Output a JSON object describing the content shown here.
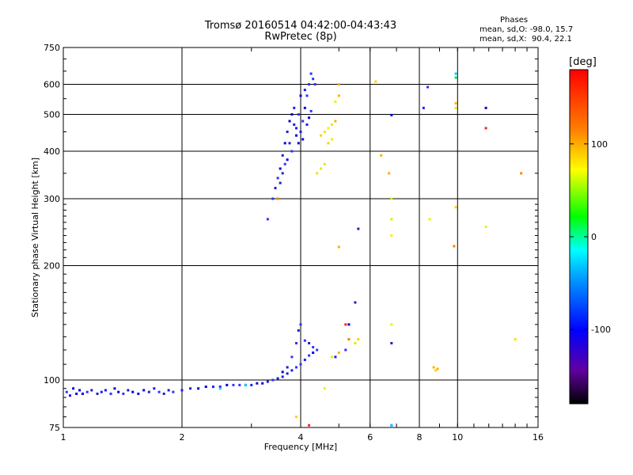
{
  "header": {
    "title_line1": "Tromsø 20160514 04:42:00-04:43:43",
    "title_line2": "RwPretec (8p)"
  },
  "phases_box": {
    "heading": "Phases",
    "line_o": "mean, sd,O: -98.0, 15.7",
    "line_x": "mean, sd,X:  90.4, 22.1"
  },
  "colors": {
    "axis": "#000000",
    "point_blue": "#2020ff"
  },
  "chart_data": {
    "type": "scatter",
    "title": "Tromsø 20160514 04:42:00-04:43:43",
    "subtitle": "RwPretec (8p)",
    "xlabel": "Frequency [MHz]",
    "ylabel": "Stationary phase Virtual Height [km]",
    "x_scale": "log",
    "y_scale": "log",
    "xlim": [
      1,
      16
    ],
    "ylim": [
      75,
      750
    ],
    "x_ticks": [
      1,
      2,
      4,
      6,
      8,
      10,
      16
    ],
    "x_tick_labels": [
      "1",
      "2",
      "4",
      "6",
      "8",
      "10",
      "16"
    ],
    "y_ticks": [
      75,
      100,
      200,
      300,
      400,
      500,
      600,
      750
    ],
    "y_tick_labels": [
      "75",
      "100",
      "200",
      "300",
      "400",
      "500",
      "600",
      "750"
    ],
    "grid": true,
    "colorbar": {
      "label": "[deg]",
      "range": [
        -180,
        180
      ],
      "ticks": [
        100,
        0,
        -100
      ],
      "tick_labels": [
        "100",
        "0",
        "-100"
      ]
    },
    "series": [
      {
        "mode": "O",
        "note": "blue points, phase about -100 deg",
        "points": [
          [
            1.02,
            93
          ],
          [
            1.04,
            91
          ],
          [
            1.06,
            95
          ],
          [
            1.08,
            92
          ],
          [
            1.1,
            94
          ],
          [
            1.12,
            92
          ],
          [
            1.15,
            93
          ],
          [
            1.18,
            94
          ],
          [
            1.22,
            92
          ],
          [
            1.25,
            93
          ],
          [
            1.28,
            94
          ],
          [
            1.32,
            92
          ],
          [
            1.35,
            95
          ],
          [
            1.38,
            93
          ],
          [
            1.42,
            92
          ],
          [
            1.46,
            94
          ],
          [
            1.5,
            93
          ],
          [
            1.55,
            92
          ],
          [
            1.6,
            94
          ],
          [
            1.65,
            93
          ],
          [
            1.7,
            95
          ],
          [
            1.75,
            93
          ],
          [
            1.8,
            92
          ],
          [
            1.85,
            94
          ],
          [
            1.9,
            93
          ],
          [
            2.0,
            94
          ],
          [
            2.1,
            95
          ],
          [
            2.2,
            95
          ],
          [
            2.3,
            96
          ],
          [
            2.4,
            96
          ],
          [
            2.5,
            96
          ],
          [
            2.6,
            97
          ],
          [
            2.7,
            97
          ],
          [
            2.8,
            97
          ],
          [
            2.9,
            97
          ],
          [
            3.0,
            97
          ],
          [
            3.1,
            98
          ],
          [
            3.2,
            98
          ],
          [
            3.3,
            99
          ],
          [
            3.4,
            100
          ],
          [
            3.5,
            101
          ],
          [
            3.6,
            102
          ],
          [
            3.7,
            104
          ],
          [
            3.8,
            106
          ],
          [
            3.9,
            108
          ],
          [
            4.0,
            110
          ],
          [
            4.1,
            113
          ],
          [
            4.2,
            116
          ],
          [
            4.3,
            118
          ],
          [
            4.4,
            120
          ],
          [
            3.6,
            105
          ],
          [
            3.7,
            108
          ],
          [
            3.8,
            115
          ],
          [
            3.9,
            125
          ],
          [
            3.95,
            135
          ],
          [
            4.0,
            140
          ],
          [
            4.1,
            127
          ],
          [
            4.2,
            125
          ],
          [
            4.3,
            122
          ],
          [
            3.4,
            300
          ],
          [
            3.45,
            320
          ],
          [
            3.5,
            340
          ],
          [
            3.55,
            360
          ],
          [
            3.6,
            390
          ],
          [
            3.65,
            420
          ],
          [
            3.7,
            450
          ],
          [
            3.75,
            480
          ],
          [
            3.8,
            500
          ],
          [
            3.85,
            470
          ],
          [
            3.9,
            440
          ],
          [
            3.95,
            420
          ],
          [
            4.0,
            450
          ],
          [
            4.05,
            480
          ],
          [
            4.1,
            520
          ],
          [
            4.15,
            560
          ],
          [
            4.2,
            600
          ],
          [
            4.25,
            640
          ],
          [
            4.3,
            620
          ],
          [
            4.35,
            600
          ],
          [
            3.75,
            420
          ],
          [
            3.85,
            520
          ],
          [
            3.95,
            500
          ],
          [
            4.05,
            430
          ],
          [
            4.15,
            470
          ],
          [
            4.25,
            510
          ],
          [
            3.7,
            380
          ],
          [
            3.8,
            400
          ],
          [
            4.0,
            560
          ],
          [
            4.1,
            580
          ],
          [
            3.6,
            350
          ],
          [
            3.65,
            370
          ],
          [
            3.55,
            330
          ],
          [
            3.9,
            460
          ],
          [
            4.2,
            490
          ],
          [
            3.3,
            265
          ],
          [
            5.6,
            250
          ],
          [
            5.5,
            160
          ],
          [
            6.8,
            125
          ],
          [
            6.8,
            498
          ],
          [
            8.4,
            590
          ],
          [
            8.2,
            520
          ],
          [
            11.8,
            520
          ],
          [
            6.8,
            76
          ],
          [
            5.3,
            140
          ],
          [
            5.2,
            120
          ],
          [
            4.9,
            115
          ]
        ]
      },
      {
        "mode": "X",
        "note": "yellow-orange points, phase about +100 deg",
        "points": [
          [
            4.5,
            440
          ],
          [
            4.6,
            450
          ],
          [
            4.7,
            460
          ],
          [
            4.8,
            470
          ],
          [
            4.9,
            480
          ],
          [
            4.8,
            430
          ],
          [
            4.7,
            420
          ],
          [
            4.6,
            370
          ],
          [
            4.5,
            360
          ],
          [
            4.4,
            350
          ],
          [
            5.0,
            560
          ],
          [
            5.0,
            600
          ],
          [
            4.9,
            540
          ],
          [
            6.2,
            610
          ],
          [
            6.4,
            390
          ],
          [
            6.7,
            350
          ],
          [
            6.8,
            300
          ],
          [
            6.8,
            265
          ],
          [
            6.8,
            240
          ],
          [
            6.8,
            140
          ],
          [
            8.5,
            265
          ],
          [
            9.9,
            285
          ],
          [
            11.8,
            253
          ],
          [
            14.0,
            128
          ],
          [
            5.6,
            128
          ],
          [
            5.5,
            125
          ],
          [
            5.0,
            118
          ],
          [
            4.8,
            115
          ],
          [
            3.9,
            80
          ],
          [
            4.6,
            95
          ],
          [
            8.7,
            108
          ],
          [
            8.8,
            106
          ],
          [
            8.9,
            107
          ],
          [
            9.9,
            520
          ],
          [
            9.9,
            535
          ],
          [
            5.0,
            224
          ]
        ]
      },
      {
        "mode": "other",
        "note": "cyan / green / red scattered points",
        "points": [
          [
            9.9,
            625
          ],
          [
            9.9,
            640
          ],
          [
            11.8,
            460
          ],
          [
            14.5,
            350
          ],
          [
            9.8,
            225
          ],
          [
            6.8,
            76
          ],
          [
            4.2,
            76
          ],
          [
            3.5,
            300
          ],
          [
            2.9,
            97
          ],
          [
            2.5,
            95
          ],
          [
            5.2,
            140
          ],
          [
            5.3,
            128
          ]
        ]
      }
    ]
  }
}
